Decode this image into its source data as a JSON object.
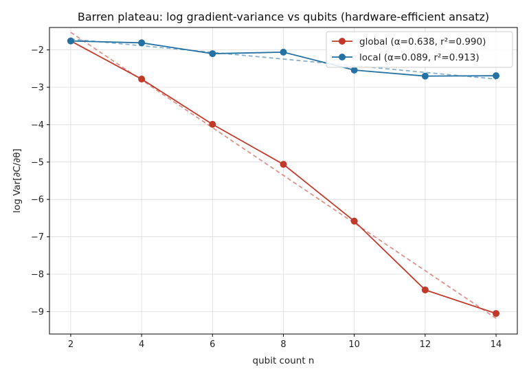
{
  "chart_data": {
    "type": "line",
    "title": "Barren plateau: log gradient-variance vs qubits (hardware-efficient ansatz)",
    "xlabel": "qubit count  n",
    "ylabel": "log Var[∂C/∂θ]",
    "x": [
      2,
      4,
      6,
      8,
      10,
      12,
      14
    ],
    "xlim": [
      1.4,
      14.6
    ],
    "ylim": [
      -9.6,
      -1.4
    ],
    "xticks": [
      2,
      4,
      6,
      8,
      10,
      12,
      14
    ],
    "yticks": [
      -2,
      -3,
      -4,
      -5,
      -6,
      -7,
      -8,
      -9
    ],
    "grid": true,
    "legend_position": "top-right",
    "series": [
      {
        "name": "global  (α=0.638, r²=0.990)",
        "color": "#c0392b",
        "values": [
          -1.76,
          -2.78,
          -3.99,
          -5.06,
          -6.58,
          -8.42,
          -9.05
        ],
        "fit": [
          [
            2,
            -1.53
          ],
          [
            14,
            -9.18
          ]
        ]
      },
      {
        "name": "local  (α=0.089, r²=0.913)",
        "color": "#2471a3",
        "values": [
          -1.76,
          -1.81,
          -2.1,
          -2.06,
          -2.54,
          -2.7,
          -2.69
        ],
        "fit": [
          [
            2,
            -1.71
          ],
          [
            14,
            -2.78
          ]
        ]
      }
    ]
  }
}
